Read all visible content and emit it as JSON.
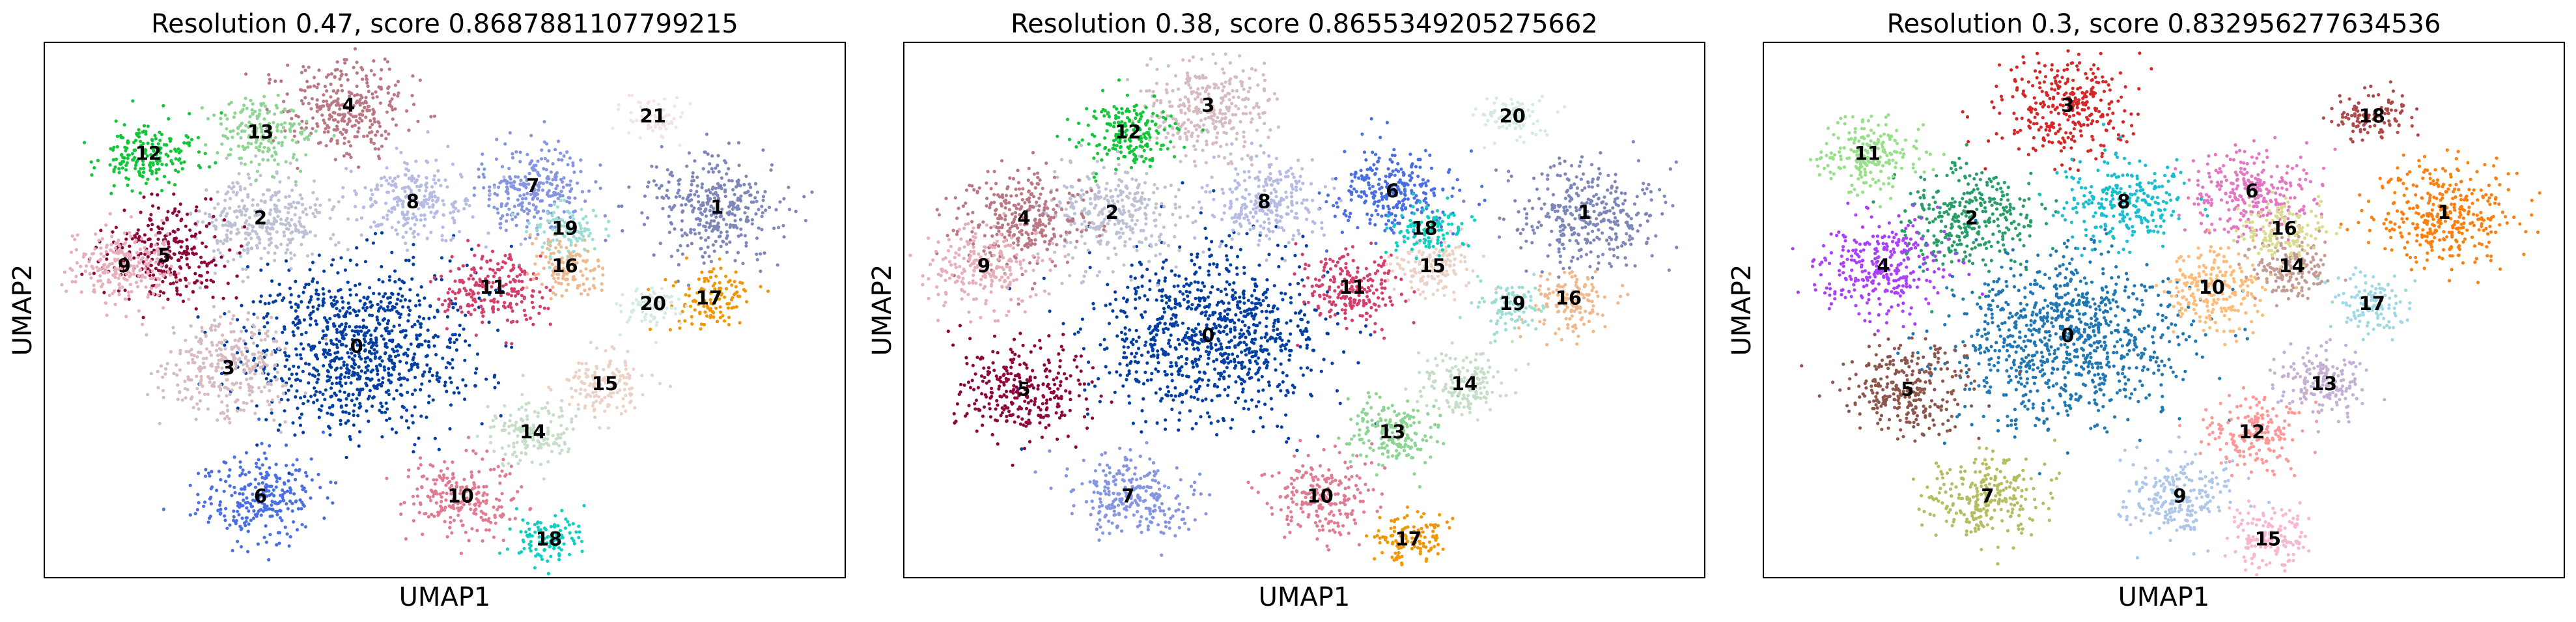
{
  "chart_data": [
    {
      "type": "scatter",
      "title": "Resolution 0.47, score 0.8687881107799215",
      "xlabel": "UMAP1",
      "ylabel": "UMAP2",
      "grid": false,
      "legend": "on data",
      "clusters": [
        {
          "label": "0",
          "x": 0.39,
          "y": 0.43,
          "color": "#023fa5"
        },
        {
          "label": "1",
          "x": 0.84,
          "y": 0.69,
          "color": "#7d87b9"
        },
        {
          "label": "2",
          "x": 0.27,
          "y": 0.67,
          "color": "#bec1d4"
        },
        {
          "label": "3",
          "x": 0.23,
          "y": 0.39,
          "color": "#d6bcc0"
        },
        {
          "label": "4",
          "x": 0.38,
          "y": 0.88,
          "color": "#bb7784"
        },
        {
          "label": "5",
          "x": 0.15,
          "y": 0.6,
          "color": "#8e063b"
        },
        {
          "label": "6",
          "x": 0.27,
          "y": 0.15,
          "color": "#4a6fe3"
        },
        {
          "label": "7",
          "x": 0.61,
          "y": 0.73,
          "color": "#8595e1"
        },
        {
          "label": "8",
          "x": 0.46,
          "y": 0.7,
          "color": "#b5bbe3"
        },
        {
          "label": "9",
          "x": 0.1,
          "y": 0.58,
          "color": "#e6afb9"
        },
        {
          "label": "10",
          "x": 0.52,
          "y": 0.15,
          "color": "#e07b91"
        },
        {
          "label": "11",
          "x": 0.56,
          "y": 0.54,
          "color": "#d33f6a"
        },
        {
          "label": "12",
          "x": 0.13,
          "y": 0.79,
          "color": "#11c638"
        },
        {
          "label": "13",
          "x": 0.27,
          "y": 0.83,
          "color": "#8dd593"
        },
        {
          "label": "14",
          "x": 0.61,
          "y": 0.27,
          "color": "#c6dec7"
        },
        {
          "label": "15",
          "x": 0.7,
          "y": 0.36,
          "color": "#ead3c6"
        },
        {
          "label": "16",
          "x": 0.65,
          "y": 0.58,
          "color": "#f0b98d"
        },
        {
          "label": "17",
          "x": 0.83,
          "y": 0.52,
          "color": "#ef9708"
        },
        {
          "label": "18",
          "x": 0.63,
          "y": 0.07,
          "color": "#0fcfc0"
        },
        {
          "label": "19",
          "x": 0.65,
          "y": 0.65,
          "color": "#9cded6"
        },
        {
          "label": "20",
          "x": 0.76,
          "y": 0.51,
          "color": "#d5eae7"
        },
        {
          "label": "21",
          "x": 0.76,
          "y": 0.86,
          "color": "#f3e1eb"
        }
      ]
    },
    {
      "type": "scatter",
      "title": "Resolution 0.38, score 0.8655349205275662",
      "xlabel": "UMAP1",
      "ylabel": "UMAP2",
      "grid": false,
      "legend": "on data",
      "clusters": [
        {
          "label": "0",
          "x": 0.38,
          "y": 0.45,
          "color": "#023fa5"
        },
        {
          "label": "1",
          "x": 0.85,
          "y": 0.68,
          "color": "#7d87b9"
        },
        {
          "label": "2",
          "x": 0.26,
          "y": 0.68,
          "color": "#bec1d4"
        },
        {
          "label": "3",
          "x": 0.38,
          "y": 0.88,
          "color": "#d6bcc0"
        },
        {
          "label": "4",
          "x": 0.15,
          "y": 0.67,
          "color": "#bb7784"
        },
        {
          "label": "5",
          "x": 0.15,
          "y": 0.35,
          "color": "#8e063b"
        },
        {
          "label": "6",
          "x": 0.61,
          "y": 0.72,
          "color": "#4a6fe3"
        },
        {
          "label": "7",
          "x": 0.28,
          "y": 0.15,
          "color": "#8595e1"
        },
        {
          "label": "8",
          "x": 0.45,
          "y": 0.7,
          "color": "#b5bbe3"
        },
        {
          "label": "9",
          "x": 0.1,
          "y": 0.58,
          "color": "#e6afb9"
        },
        {
          "label": "10",
          "x": 0.52,
          "y": 0.15,
          "color": "#e07b91"
        },
        {
          "label": "11",
          "x": 0.56,
          "y": 0.54,
          "color": "#d33f6a"
        },
        {
          "label": "12",
          "x": 0.28,
          "y": 0.83,
          "color": "#11c638"
        },
        {
          "label": "13",
          "x": 0.61,
          "y": 0.27,
          "color": "#8dd593"
        },
        {
          "label": "14",
          "x": 0.7,
          "y": 0.36,
          "color": "#c6dec7"
        },
        {
          "label": "15",
          "x": 0.66,
          "y": 0.58,
          "color": "#ead3c6"
        },
        {
          "label": "16",
          "x": 0.83,
          "y": 0.52,
          "color": "#f0b98d"
        },
        {
          "label": "17",
          "x": 0.63,
          "y": 0.07,
          "color": "#ef9708"
        },
        {
          "label": "18",
          "x": 0.65,
          "y": 0.65,
          "color": "#0fcfc0"
        },
        {
          "label": "19",
          "x": 0.76,
          "y": 0.51,
          "color": "#9cded6"
        },
        {
          "label": "20",
          "x": 0.76,
          "y": 0.86,
          "color": "#d5eae7"
        }
      ]
    },
    {
      "type": "scatter",
      "title": "Resolution 0.3, score 0.832956277634536",
      "xlabel": "UMAP1",
      "ylabel": "UMAP2",
      "grid": false,
      "legend": "on data",
      "clusters": [
        {
          "label": "0",
          "x": 0.38,
          "y": 0.45,
          "color": "#1f77b4"
        },
        {
          "label": "1",
          "x": 0.85,
          "y": 0.68,
          "color": "#ff7f0e"
        },
        {
          "label": "2",
          "x": 0.26,
          "y": 0.67,
          "color": "#279e68"
        },
        {
          "label": "3",
          "x": 0.38,
          "y": 0.88,
          "color": "#d62728"
        },
        {
          "label": "4",
          "x": 0.15,
          "y": 0.58,
          "color": "#aa40fc"
        },
        {
          "label": "5",
          "x": 0.18,
          "y": 0.35,
          "color": "#8c564b"
        },
        {
          "label": "6",
          "x": 0.61,
          "y": 0.72,
          "color": "#e377c2"
        },
        {
          "label": "7",
          "x": 0.28,
          "y": 0.15,
          "color": "#b5bd61"
        },
        {
          "label": "8",
          "x": 0.45,
          "y": 0.7,
          "color": "#17becf"
        },
        {
          "label": "9",
          "x": 0.52,
          "y": 0.15,
          "color": "#aec7e8"
        },
        {
          "label": "10",
          "x": 0.56,
          "y": 0.54,
          "color": "#ffbb78"
        },
        {
          "label": "11",
          "x": 0.13,
          "y": 0.79,
          "color": "#98df8a"
        },
        {
          "label": "12",
          "x": 0.61,
          "y": 0.27,
          "color": "#ff9896"
        },
        {
          "label": "13",
          "x": 0.7,
          "y": 0.36,
          "color": "#c5b0d5"
        },
        {
          "label": "14",
          "x": 0.66,
          "y": 0.58,
          "color": "#c49c94"
        },
        {
          "label": "15",
          "x": 0.63,
          "y": 0.07,
          "color": "#f7b6d2"
        },
        {
          "label": "16",
          "x": 0.65,
          "y": 0.65,
          "color": "#dbdb8d"
        },
        {
          "label": "17",
          "x": 0.76,
          "y": 0.51,
          "color": "#9edae5"
        },
        {
          "label": "18",
          "x": 0.76,
          "y": 0.86,
          "color": "#ad494a"
        }
      ]
    }
  ]
}
